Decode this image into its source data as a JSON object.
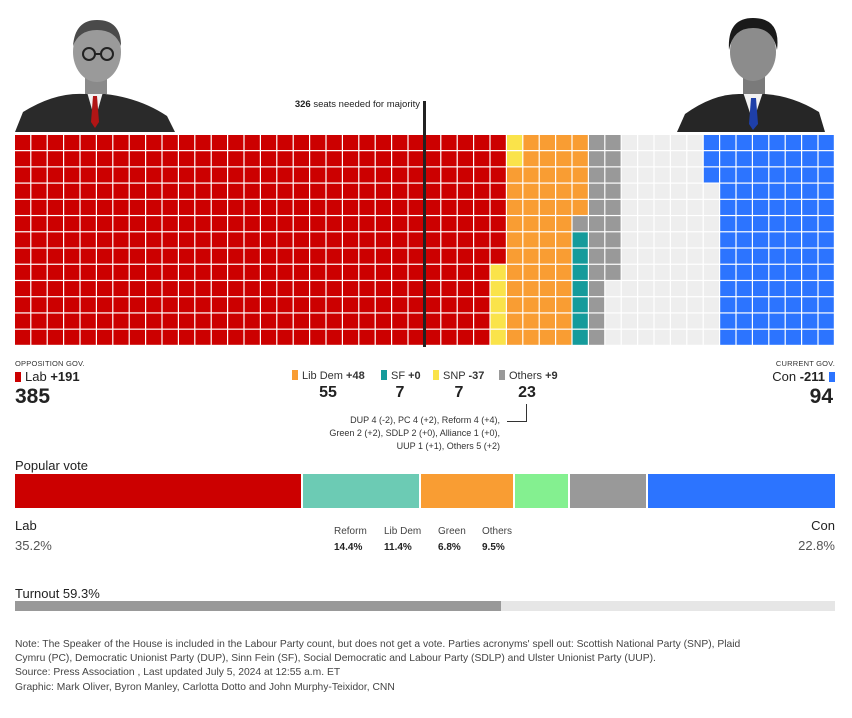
{
  "header": {
    "majority_bold": "326",
    "majority_text": " seats needed for majority"
  },
  "portraits": {
    "left": "opposition-leader-portrait",
    "right": "current-pm-portrait"
  },
  "colors": {
    "lab": "#cc0000",
    "ldem": "#f99d33",
    "sf": "#159b9b",
    "snp": "#fae34a",
    "others": "#999999",
    "con": "#2c74ff",
    "reform": "#6ccbb4",
    "green": "#84f090",
    "empty": "#eeeeee"
  },
  "chart_data": [
    {
      "type": "waffle",
      "title": "",
      "rows": 13,
      "columns": 50,
      "majority_threshold": 326,
      "series": [
        {
          "name": "Lab",
          "seats": 385,
          "change": "+191"
        },
        {
          "name": "SNP",
          "seats": 7,
          "change": "-37"
        },
        {
          "name": "Lib Dem",
          "seats": 55,
          "change": "+48"
        },
        {
          "name": "SF",
          "seats": 7,
          "change": "+0"
        },
        {
          "name": "Others",
          "seats": 23,
          "change": "+9"
        },
        {
          "name": "Con",
          "seats": 94,
          "change": "-211"
        }
      ],
      "undeclared": 79
    },
    {
      "type": "bar",
      "title": "Popular vote",
      "orientation": "horizontal-stacked",
      "categories": [
        "Lab",
        "Reform",
        "Lib Dem",
        "Green",
        "Others",
        "Con"
      ],
      "values": [
        35.2,
        14.4,
        11.4,
        6.8,
        9.5,
        22.8
      ],
      "unit": "%"
    },
    {
      "type": "bar",
      "title": "Turnout",
      "values": [
        59.3
      ],
      "unit": "%"
    }
  ],
  "seats": {
    "left": {
      "tag": "OPPOSITION GOV.",
      "name": "Lab",
      "change": "+191",
      "count": "385"
    },
    "right": {
      "tag": "CURRENT GOV.",
      "name": "Con",
      "change": "-211",
      "count": "94"
    },
    "middle": [
      {
        "name": "Lib Dem",
        "change": "+48",
        "count": "55"
      },
      {
        "name": "SF",
        "change": "+0",
        "count": "7"
      },
      {
        "name": "SNP",
        "change": "-37",
        "count": "7"
      },
      {
        "name": "Others",
        "change": "+9",
        "count": "23"
      }
    ],
    "others_detail": [
      "DUP 4 (-2), PC 4 (+2), Reform 4 (+4),",
      "Green 2 (+2), SDLP 2 (+0), Alliance 1 (+0),",
      "UUP 1 (+1), Others 5 (+2)"
    ]
  },
  "popular_vote": {
    "title": "Popular vote",
    "lab": {
      "name": "Lab",
      "pct": "35.2%"
    },
    "con": {
      "name": "Con",
      "pct": "22.8%"
    },
    "small": [
      {
        "name": "Reform",
        "pct": "14.4%"
      },
      {
        "name": "Lib Dem",
        "pct": "11.4%"
      },
      {
        "name": "Green",
        "pct": "6.8%"
      },
      {
        "name": "Others",
        "pct": "9.5%"
      }
    ]
  },
  "turnout": {
    "label": "Turnout 59.3%",
    "value": 59.3
  },
  "notes": [
    "Note: The Speaker of the House is included in the Labour Party count, but does not get a vote. Parties acronyms' spell out: Scottish National Party (SNP), Plaid",
    "Cymru (PC), Democratic Unionist Party (DUP), Sinn Fein (SF), Social Democratic and Labour Party (SDLP) and Ulster Unionist Party (UUP).",
    "Source: Press Association , Last updated July 5, 2024 at 12:55 a.m. ET",
    "Graphic: Mark Oliver, Byron Manley, Carlotta Dotto and John Murphy-Teixidor, CNN"
  ]
}
